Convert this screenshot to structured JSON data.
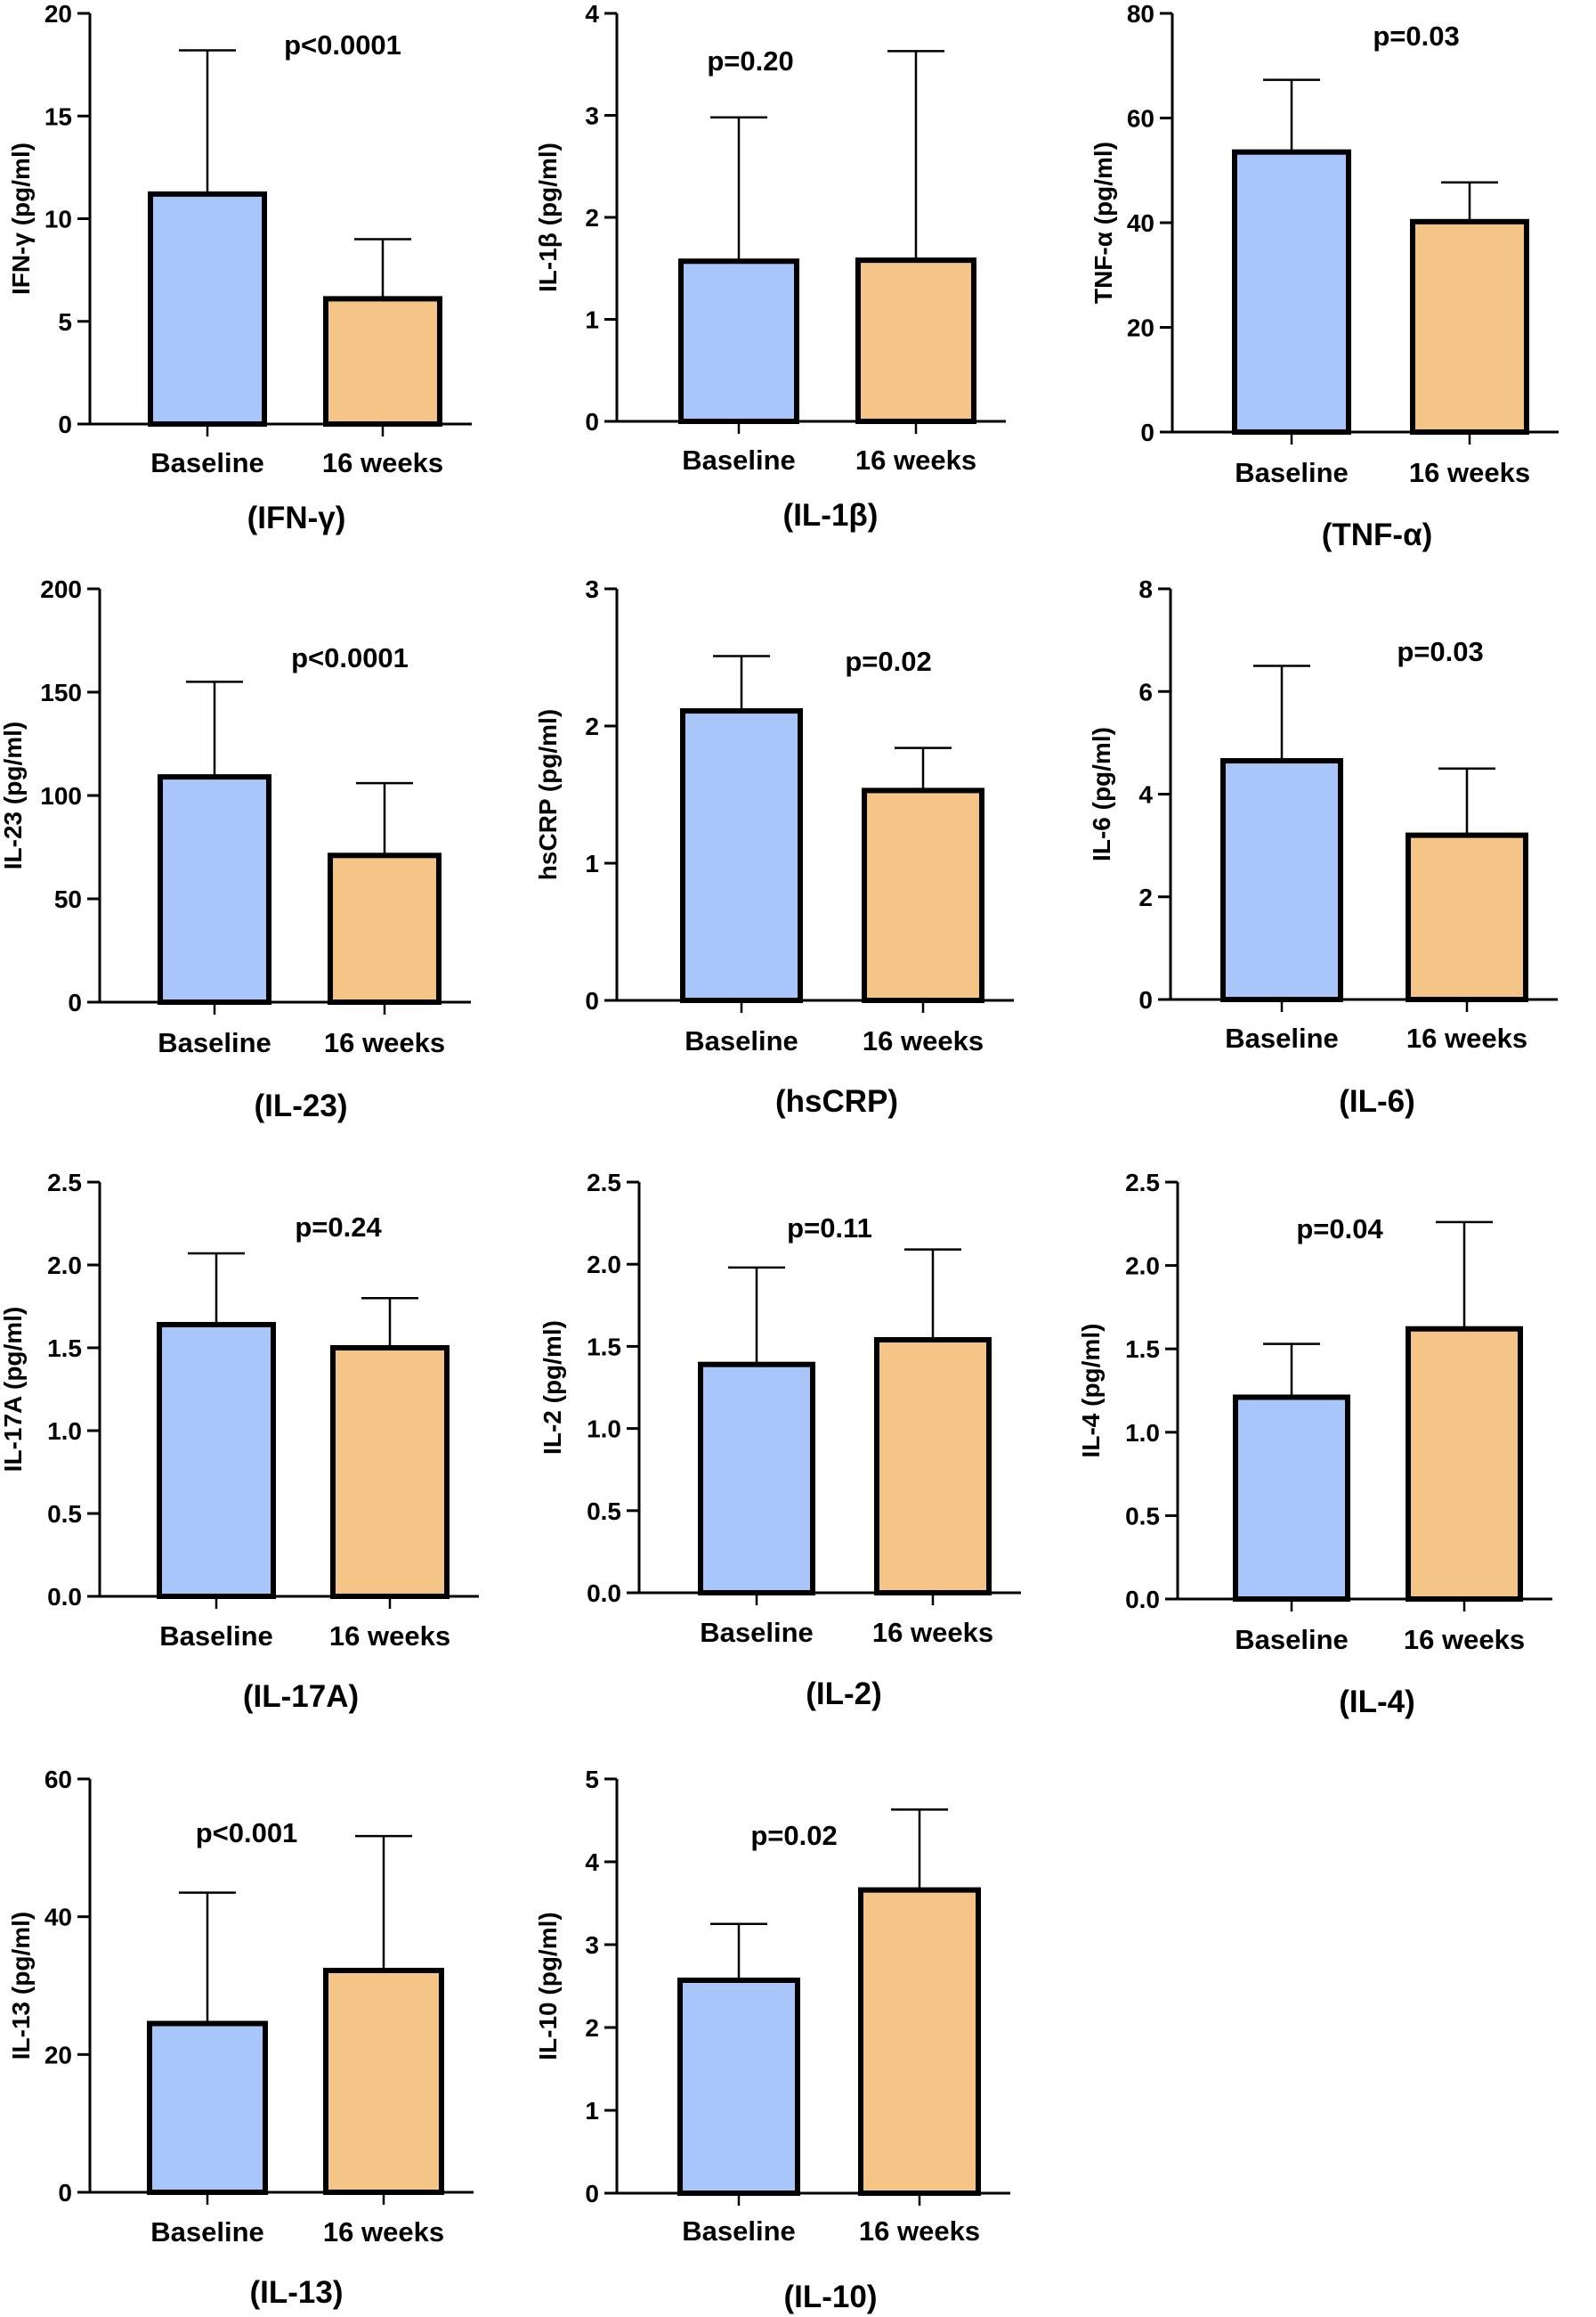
{
  "colors": {
    "baseline": "#a9c6fb",
    "weeks16": "#f5c487",
    "stroke": "#000000"
  },
  "chart_data": [
    {
      "type": "bar",
      "title": "(IFN-γ)",
      "ylabel": "IFN-γ (pg/ml)",
      "pvalue": "p<0.0001",
      "categories": [
        "Baseline",
        "16 weeks"
      ],
      "values": [
        11.2,
        6.1
      ],
      "errors": [
        18.2,
        9.0
      ],
      "ylim": [
        0,
        20
      ],
      "yticks": [
        0,
        5,
        10,
        15,
        20
      ],
      "ytick_labels": [
        "0",
        "5",
        "10",
        "15",
        "20"
      ]
    },
    {
      "type": "bar",
      "title": "(IL-1β)",
      "ylabel": "IL-1β (pg/ml)",
      "pvalue": "p=0.20",
      "categories": [
        "Baseline",
        "16 weeks"
      ],
      "values": [
        1.57,
        1.58
      ],
      "errors": [
        2.98,
        3.63
      ],
      "ylim": [
        0,
        4
      ],
      "yticks": [
        0,
        1,
        2,
        3,
        4
      ],
      "ytick_labels": [
        "0",
        "1",
        "2",
        "3",
        "4"
      ]
    },
    {
      "type": "bar",
      "title": "(TNF-α)",
      "ylabel": "TNF-α (pg/ml)",
      "pvalue": "p=0.03",
      "categories": [
        "Baseline",
        "16 weeks"
      ],
      "values": [
        53.5,
        40.2
      ],
      "errors": [
        67.3,
        47.7
      ],
      "ylim": [
        0,
        80
      ],
      "yticks": [
        0,
        20,
        40,
        60,
        80
      ],
      "ytick_labels": [
        "0",
        "20",
        "40",
        "60",
        "80"
      ]
    },
    {
      "type": "bar",
      "title": "(IL-23)",
      "ylabel": "IL-23 (pg/ml)",
      "pvalue": "p<0.0001",
      "categories": [
        "Baseline",
        "16 weeks"
      ],
      "values": [
        109,
        71
      ],
      "errors": [
        155,
        106
      ],
      "ylim": [
        0,
        200
      ],
      "yticks": [
        0,
        50,
        100,
        150,
        200
      ],
      "ytick_labels": [
        "0",
        "50",
        "100",
        "150",
        "200"
      ]
    },
    {
      "type": "bar",
      "title": "(hsCRP)",
      "ylabel": "hsCRP (pg/ml)",
      "pvalue": "p=0.02",
      "categories": [
        "Baseline",
        "16 weeks"
      ],
      "values": [
        2.11,
        1.53
      ],
      "errors": [
        2.51,
        1.84
      ],
      "ylim": [
        0,
        3
      ],
      "yticks": [
        0,
        1,
        2,
        3
      ],
      "ytick_labels": [
        "0",
        "1",
        "2",
        "3"
      ]
    },
    {
      "type": "bar",
      "title": "(IL-6)",
      "ylabel": "IL-6 (pg/ml)",
      "pvalue": "p=0.03",
      "categories": [
        "Baseline",
        "16 weeks"
      ],
      "values": [
        4.65,
        3.2
      ],
      "errors": [
        6.5,
        4.5
      ],
      "ylim": [
        0,
        8
      ],
      "yticks": [
        0,
        2,
        4,
        6,
        8
      ],
      "ytick_labels": [
        "0",
        "2",
        "4",
        "6",
        "8"
      ]
    },
    {
      "type": "bar",
      "title": "(IL-17A)",
      "ylabel": "IL-17A (pg/ml)",
      "pvalue": "p=0.24",
      "categories": [
        "Baseline",
        "16 weeks"
      ],
      "values": [
        1.64,
        1.5
      ],
      "errors": [
        2.07,
        1.8
      ],
      "ylim": [
        0,
        2.5
      ],
      "yticks": [
        0,
        0.5,
        1,
        1.5,
        2,
        2.5
      ],
      "ytick_labels": [
        "0.0",
        "0.5",
        "1.0",
        "1.5",
        "2.0",
        "2.5"
      ]
    },
    {
      "type": "bar",
      "title": "(IL-2)",
      "ylabel": "IL-2 (pg/ml)",
      "pvalue": "p=0.11",
      "categories": [
        "Baseline",
        "16 weeks"
      ],
      "values": [
        1.39,
        1.54
      ],
      "errors": [
        1.98,
        2.09
      ],
      "ylim": [
        0,
        2.5
      ],
      "yticks": [
        0,
        0.5,
        1,
        1.5,
        2,
        2.5
      ],
      "ytick_labels": [
        "0.0",
        "0.5",
        "1.0",
        "1.5",
        "2.0",
        "2.5"
      ]
    },
    {
      "type": "bar",
      "title": "(IL-4)",
      "ylabel": "IL-4 (pg/ml)",
      "pvalue": "p=0.04",
      "categories": [
        "Baseline",
        "16 weeks"
      ],
      "values": [
        1.21,
        1.62
      ],
      "errors": [
        1.53,
        2.26
      ],
      "ylim": [
        0,
        2.5
      ],
      "yticks": [
        0,
        0.5,
        1,
        1.5,
        2,
        2.5
      ],
      "ytick_labels": [
        "0.0",
        "0.5",
        "1.0",
        "1.5",
        "2.0",
        "2.5"
      ]
    },
    {
      "type": "bar",
      "title": "(IL-13)",
      "ylabel": "IL-13 (pg/ml)",
      "pvalue": "p<0.001",
      "categories": [
        "Baseline",
        "16 weeks"
      ],
      "values": [
        24.5,
        32.2
      ],
      "errors": [
        43.5,
        51.7
      ],
      "ylim": [
        0,
        60
      ],
      "yticks": [
        0,
        20,
        40,
        60
      ],
      "ytick_labels": [
        "0",
        "20",
        "40",
        "60"
      ]
    },
    {
      "type": "bar",
      "title": "(IL-10)",
      "ylabel": "IL-10 (pg/ml)",
      "pvalue": "p=0.02",
      "categories": [
        "Baseline",
        "16 weeks"
      ],
      "values": [
        2.57,
        3.66
      ],
      "errors": [
        3.25,
        4.63
      ],
      "ylim": [
        0,
        5
      ],
      "yticks": [
        0,
        1,
        2,
        3,
        4,
        5
      ],
      "ytick_labels": [
        "0",
        "1",
        "2",
        "3",
        "4",
        "5"
      ]
    }
  ]
}
